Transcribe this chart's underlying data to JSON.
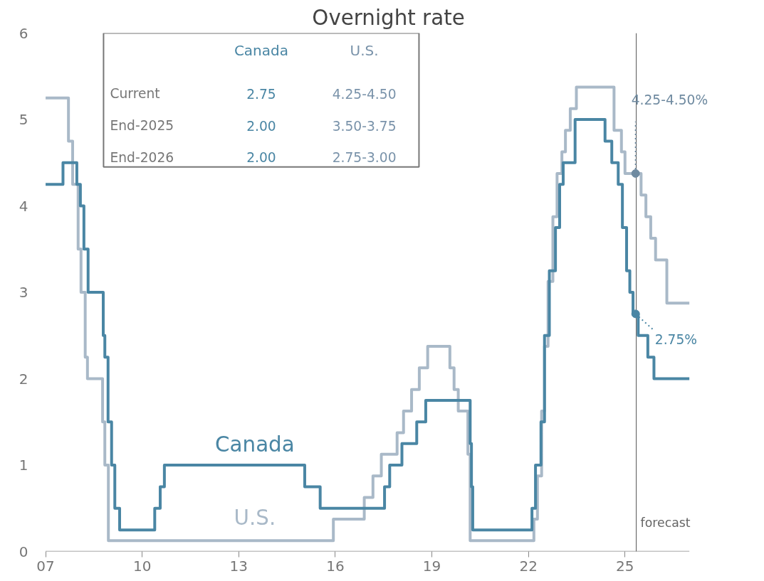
{
  "chart_data": {
    "type": "step",
    "title": "Overnight rate",
    "xlim": [
      2007,
      2027
    ],
    "ylim": [
      0,
      6
    ],
    "xticks": [
      {
        "value": 2007,
        "label": "07"
      },
      {
        "value": 2010,
        "label": "10"
      },
      {
        "value": 2013,
        "label": "13"
      },
      {
        "value": 2016,
        "label": "16"
      },
      {
        "value": 2019,
        "label": "19"
      },
      {
        "value": 2022,
        "label": "22"
      },
      {
        "value": 2025,
        "label": "25"
      }
    ],
    "yticks": [
      0,
      1,
      2,
      3,
      4,
      5,
      6
    ],
    "grid": false,
    "marker": "none",
    "line_style": "solid",
    "series": [
      {
        "name": "U.S.",
        "color": "#a9b9c8",
        "x": [
          2007.0,
          2007.71,
          2007.84,
          2008.01,
          2008.1,
          2008.23,
          2008.3,
          2008.77,
          2008.84,
          2008.95,
          2015.94,
          2016.9,
          2017.17,
          2017.43,
          2017.92,
          2018.12,
          2018.37,
          2018.61,
          2018.87,
          2019.56,
          2019.69,
          2019.82,
          2020.12,
          2020.19,
          2022.17,
          2022.28,
          2022.41,
          2022.5,
          2022.61,
          2022.76,
          2022.89,
          2023.04,
          2023.15,
          2023.3,
          2023.49,
          2024.66,
          2024.89,
          2025.0,
          2025.5,
          2025.65,
          2025.8,
          2025.95,
          2026.3,
          2027.0
        ],
        "values": [
          5.25,
          4.75,
          4.25,
          3.5,
          3.0,
          2.25,
          2.0,
          1.5,
          1.0,
          0.125,
          0.375,
          0.625,
          0.875,
          1.125,
          1.375,
          1.625,
          1.875,
          2.125,
          2.375,
          2.125,
          1.875,
          1.625,
          1.125,
          0.125,
          0.375,
          0.875,
          1.625,
          2.375,
          3.125,
          3.875,
          4.375,
          4.625,
          4.875,
          5.125,
          5.375,
          4.875,
          4.625,
          4.375,
          4.125,
          3.875,
          3.625,
          3.375,
          2.875,
          2.875
        ]
      },
      {
        "name": "Canada",
        "color": "#4a86a4",
        "x": [
          2007.0,
          2007.54,
          2007.97,
          2008.08,
          2008.19,
          2008.32,
          2008.79,
          2008.84,
          2008.94,
          2009.05,
          2009.15,
          2009.3,
          2010.39,
          2010.56,
          2010.69,
          2015.05,
          2015.53,
          2017.53,
          2017.69,
          2018.07,
          2018.53,
          2018.81,
          2020.19,
          2020.23,
          2020.27,
          2022.11,
          2022.22,
          2022.39,
          2022.5,
          2022.65,
          2022.84,
          2022.97,
          2023.08,
          2023.45,
          2024.38,
          2024.59,
          2024.79,
          2024.92,
          2025.05,
          2025.15,
          2025.25,
          2025.41,
          2025.71,
          2025.9,
          2027.0
        ],
        "values": [
          4.25,
          4.5,
          4.25,
          4.0,
          3.5,
          3.0,
          2.5,
          2.25,
          1.5,
          1.0,
          0.5,
          0.25,
          0.5,
          0.75,
          1.0,
          0.75,
          0.5,
          0.75,
          1.0,
          1.25,
          1.5,
          1.75,
          1.25,
          0.75,
          0.25,
          0.5,
          1.0,
          1.5,
          2.5,
          3.25,
          3.75,
          4.25,
          4.5,
          5.0,
          4.75,
          4.5,
          4.25,
          3.75,
          3.25,
          3.0,
          2.75,
          2.5,
          2.25,
          2.0,
          2.0
        ]
      }
    ],
    "ref_lines": [
      {
        "axis": "x",
        "value": 2025.35,
        "label": "forecast",
        "color": "#555555"
      }
    ],
    "annotations": [
      {
        "text": "4.25-4.50%",
        "x": 2025.33,
        "y": 4.375
      },
      {
        "text": "2.75%",
        "x": 2025.33,
        "y": 2.75
      },
      "Canada",
      "U.S.",
      "Current",
      "2.75",
      "4.25-4.50",
      "End-2025",
      "2.00",
      "3.50-3.75",
      "End-2026",
      "2.00",
      "2.75-3.00"
    ]
  }
}
